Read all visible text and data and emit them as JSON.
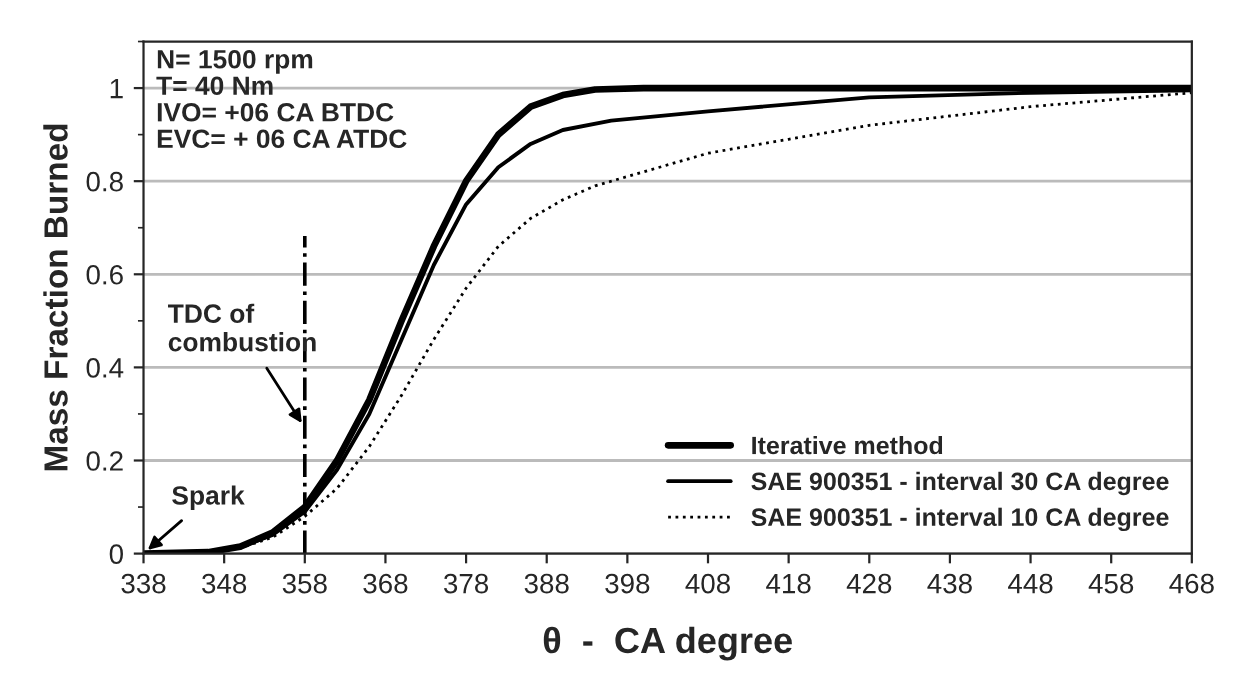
{
  "chart_data": {
    "type": "line",
    "xlabel": "θ  -  CA degree",
    "ylabel": "Mass Fraction Burned",
    "xlim": [
      338,
      468
    ],
    "ylim": [
      0,
      1.1
    ],
    "xticks": [
      338,
      348,
      358,
      368,
      378,
      388,
      398,
      408,
      418,
      428,
      438,
      448,
      458,
      468
    ],
    "yticks": [
      0,
      0.2,
      0.4,
      0.6,
      0.8,
      1
    ],
    "grid": "y",
    "legend": "bottom right",
    "series": [
      {
        "name": "Iterative method",
        "color": "#000000",
        "line_style": "solid",
        "x": [
          338,
          346,
          350,
          354,
          358,
          362,
          366,
          370,
          374,
          378,
          382,
          386,
          390,
          394,
          400,
          468
        ],
        "values": [
          0,
          0.003,
          0.015,
          0.045,
          0.1,
          0.2,
          0.33,
          0.5,
          0.66,
          0.8,
          0.9,
          0.96,
          0.985,
          0.997,
          1.0,
          1.0
        ]
      },
      {
        "name": "SAE 900351 - interval 30 CA degree",
        "color": "#000000",
        "line_style": "solid",
        "x": [
          338,
          346,
          350,
          354,
          358,
          362,
          366,
          370,
          374,
          378,
          382,
          386,
          390,
          396,
          408,
          428,
          448,
          468
        ],
        "values": [
          0,
          0.003,
          0.014,
          0.04,
          0.09,
          0.18,
          0.3,
          0.46,
          0.62,
          0.75,
          0.83,
          0.88,
          0.91,
          0.93,
          0.95,
          0.98,
          0.99,
          0.995
        ]
      },
      {
        "name": "SAE 900351 - interval 10 CA degree",
        "color": "#000000",
        "line_style": "dotted",
        "x": [
          338,
          346,
          350,
          354,
          358,
          362,
          366,
          370,
          374,
          378,
          382,
          386,
          390,
          394,
          400,
          408,
          418,
          428,
          438,
          448,
          458,
          468
        ],
        "values": [
          0,
          0.003,
          0.012,
          0.035,
          0.08,
          0.14,
          0.23,
          0.34,
          0.46,
          0.57,
          0.66,
          0.72,
          0.76,
          0.79,
          0.82,
          0.86,
          0.89,
          0.92,
          0.94,
          0.96,
          0.975,
          0.99
        ]
      }
    ],
    "ref_lines": [
      {
        "axis": "x",
        "value": 358,
        "line_style": "dashdot",
        "color": "#000000"
      }
    ],
    "annotations": [
      "N= 1500 rpm",
      "T= 40 Nm",
      "IVO= +06 CA BTDC",
      "EVC= + 06 CA ATDC",
      {
        "text": "TDC of\ncombustion",
        "x": 358,
        "y": 0.27
      },
      {
        "text": "Spark",
        "x": 338,
        "y": 0
      }
    ]
  }
}
